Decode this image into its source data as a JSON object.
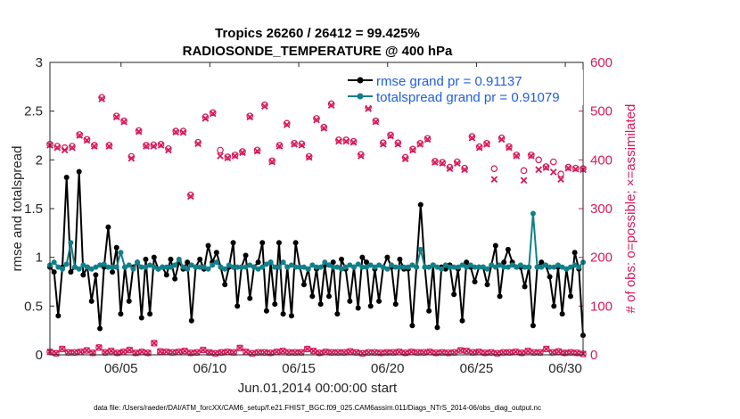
{
  "chart_data": {
    "type": "line",
    "title": "Tropics 26260 / 26412 = 99.425%",
    "subtitle": "RADIOSONDE_TEMPERATURE @ 400 hPa",
    "xlabel": "Jun.01,2014 00:00:00 start",
    "ylabel_left": "rmse and totalspread",
    "ylabel_right": "# of obs: o=possible; ×=assimilated",
    "footer": "data file: /Users/raeder/DAI/ATM_forcXX/CAM6_setup/f.e21.FHIST_BGC.f09_025.CAM6assim.011/Diags_NTrS_2014-06/obs_diag_output.nc",
    "xlim": [
      1,
      31
    ],
    "ylim_left": [
      0,
      3
    ],
    "ylim_right": [
      0,
      600
    ],
    "left_ticks": [
      "0",
      "0.5",
      "1",
      "1.5",
      "2",
      "2.5",
      "3"
    ],
    "right_ticks": [
      "0",
      "100",
      "200",
      "300",
      "400",
      "500",
      "600"
    ],
    "x_ticks": [
      {
        "x": 5,
        "label": "06/05"
      },
      {
        "x": 10,
        "label": "06/10"
      },
      {
        "x": 15,
        "label": "06/15"
      },
      {
        "x": 20,
        "label": "06/20"
      },
      {
        "x": 25,
        "label": "06/25"
      },
      {
        "x": 30,
        "label": "06/30"
      }
    ],
    "legend": [
      "rmse grand pr = 0.91137",
      "totalspread grand pr = 0.91079"
    ],
    "colors": {
      "rmse": "#000000",
      "spread": "#11808a",
      "obs": "#d6195a",
      "legend_text": "#1f5fe0"
    },
    "series": [
      {
        "name": "rmse",
        "values": [
          0.9,
          0.85,
          0.4,
          0.9,
          1.82,
          0.85,
          0.9,
          1.88,
          0.82,
          0.9,
          0.55,
          0.82,
          0.27,
          0.9,
          1.31,
          0.85,
          1.1,
          0.42,
          0.9,
          0.55,
          0.9,
          0.95,
          0.38,
          0.98,
          0.42,
          1.0,
          0.88,
          0.9,
          0.82,
          0.98,
          0.78,
          0.95,
          0.88,
          0.95,
          0.35,
          0.9,
          0.98,
          0.88,
          1.12,
          0.95,
          1.05,
          0.9,
          0.72,
          0.9,
          1.15,
          0.5,
          0.9,
          1.02,
          0.58,
          0.9,
          0.95,
          1.15,
          0.45,
          0.95,
          0.52,
          1.15,
          0.42,
          0.9,
          0.4,
          1.15,
          0.9,
          0.72,
          0.88,
          0.6,
          0.88,
          0.52,
          0.92,
          0.6,
          0.95,
          0.42,
          0.98,
          0.88,
          0.55,
          0.9,
          0.48,
          1.0,
          0.95,
          0.5,
          0.88,
          0.55,
          0.9,
          1.0,
          0.9,
          0.52,
          0.98,
          0.88,
          0.88,
          0.3,
          0.9,
          1.54,
          0.9,
          0.45,
          0.92,
          0.28,
          0.9,
          0.88,
          0.92,
          0.62,
          0.88,
          0.35,
          0.95,
          0.9,
          0.75,
          0.9,
          0.9,
          0.72,
          0.92,
          1.12,
          0.6,
          0.95,
          1.08,
          0.95,
          0.9,
          0.9,
          0.7,
          0.9,
          0.3,
          0.9,
          0.95,
          0.92,
          0.8,
          0.5,
          0.9,
          0.42,
          0.88,
          0.6,
          1.05,
          0.88,
          0.2
        ]
      },
      {
        "name": "totalspread",
        "values": [
          0.92,
          0.95,
          0.9,
          0.88,
          0.93,
          1.15,
          0.9,
          0.88,
          0.92,
          0.9,
          0.88,
          0.9,
          0.92,
          0.93,
          0.9,
          0.9,
          0.9,
          1.05,
          0.9,
          0.92,
          0.88,
          0.95,
          0.9,
          0.9,
          0.92,
          0.9,
          0.88,
          0.9,
          0.9,
          0.9,
          0.92,
          0.98,
          0.9,
          0.88,
          0.92,
          0.9,
          0.9,
          0.9,
          0.88,
          0.92,
          0.95,
          0.9,
          0.88,
          0.92,
          0.9,
          0.9,
          0.9,
          0.9,
          0.92,
          0.9,
          0.88,
          0.9,
          0.93,
          0.95,
          0.9,
          0.9,
          0.95,
          0.9,
          0.92,
          0.9,
          0.9,
          0.9,
          0.88,
          0.92,
          0.9,
          0.9,
          0.95,
          0.92,
          0.9,
          0.9,
          0.88,
          0.9,
          0.92,
          0.9,
          0.93,
          0.9,
          0.9,
          0.92,
          0.9,
          0.92,
          0.9,
          0.88,
          0.92,
          0.9,
          0.9,
          0.9,
          0.9,
          0.92,
          0.9,
          1.08,
          0.9,
          0.9,
          0.92,
          0.9,
          0.88,
          0.92,
          0.9,
          0.9,
          0.9,
          0.92,
          0.9,
          0.92,
          0.9,
          0.9,
          0.9,
          0.88,
          0.92,
          0.9,
          0.92,
          0.9,
          0.9,
          0.92,
          0.9,
          0.92,
          0.9,
          0.9,
          1.45,
          0.9,
          0.9,
          0.92,
          0.9,
          0.9,
          0.92,
          0.9,
          0.88,
          0.9,
          0.92,
          0.9,
          0.95
        ]
      },
      {
        "name": "obs_possible",
        "values": [
          432,
          428,
          425,
          428,
          452,
          442,
          430,
          528,
          430,
          490,
          480,
          407,
          460,
          430,
          431,
          432,
          423,
          459,
          459,
          328,
          436,
          488,
          497,
          420,
          406,
          410,
          417,
          490,
          420,
          513,
          398,
          430,
          475,
          434,
          433,
          407,
          485,
          467,
          515,
          441,
          441,
          438,
          411,
          508,
          480,
          435,
          451,
          435,
          405,
          422,
          434,
          444,
          397,
          395,
          385,
          396,
          383,
          448,
          427,
          434,
          382,
          445,
          427,
          410,
          378,
          410,
          400,
          386,
          396,
          371,
          385,
          383,
          382
        ]
      },
      {
        "name": "obs_assimilated",
        "values": [
          430,
          425,
          420,
          425,
          450,
          440,
          428,
          525,
          428,
          488,
          478,
          403,
          458,
          428,
          428,
          430,
          420,
          457,
          456,
          325,
          433,
          485,
          495,
          408,
          404,
          408,
          415,
          488,
          418,
          510,
          396,
          428,
          472,
          432,
          430,
          405,
          482,
          465,
          512,
          438,
          438,
          436,
          408,
          505,
          478,
          432,
          449,
          432,
          402,
          420,
          432,
          442,
          395,
          393,
          382,
          393,
          380,
          445,
          425,
          432,
          360,
          442,
          425,
          408,
          358,
          408,
          380,
          384,
          375,
          360,
          383,
          381,
          380
        ]
      },
      {
        "name": "obs_low",
        "values": [
          6,
          3,
          12,
          5,
          5,
          6,
          9,
          4,
          15,
          5,
          8,
          4,
          6,
          10,
          4,
          6,
          4,
          24,
          7,
          6,
          5,
          6,
          8,
          4,
          5,
          10,
          5,
          3,
          5,
          6,
          5,
          14,
          6,
          3,
          5,
          5,
          4,
          6,
          8,
          5,
          5,
          5,
          12,
          8,
          4,
          6,
          5,
          5,
          5,
          7,
          5,
          3,
          5,
          5,
          4,
          5,
          5,
          6,
          4,
          6,
          5,
          5,
          6,
          4,
          5,
          4,
          5,
          9,
          8,
          5,
          6,
          4,
          5,
          3,
          5,
          5,
          6,
          4,
          8,
          5,
          5,
          12,
          5,
          7,
          4,
          5,
          4,
          2
        ]
      }
    ]
  }
}
